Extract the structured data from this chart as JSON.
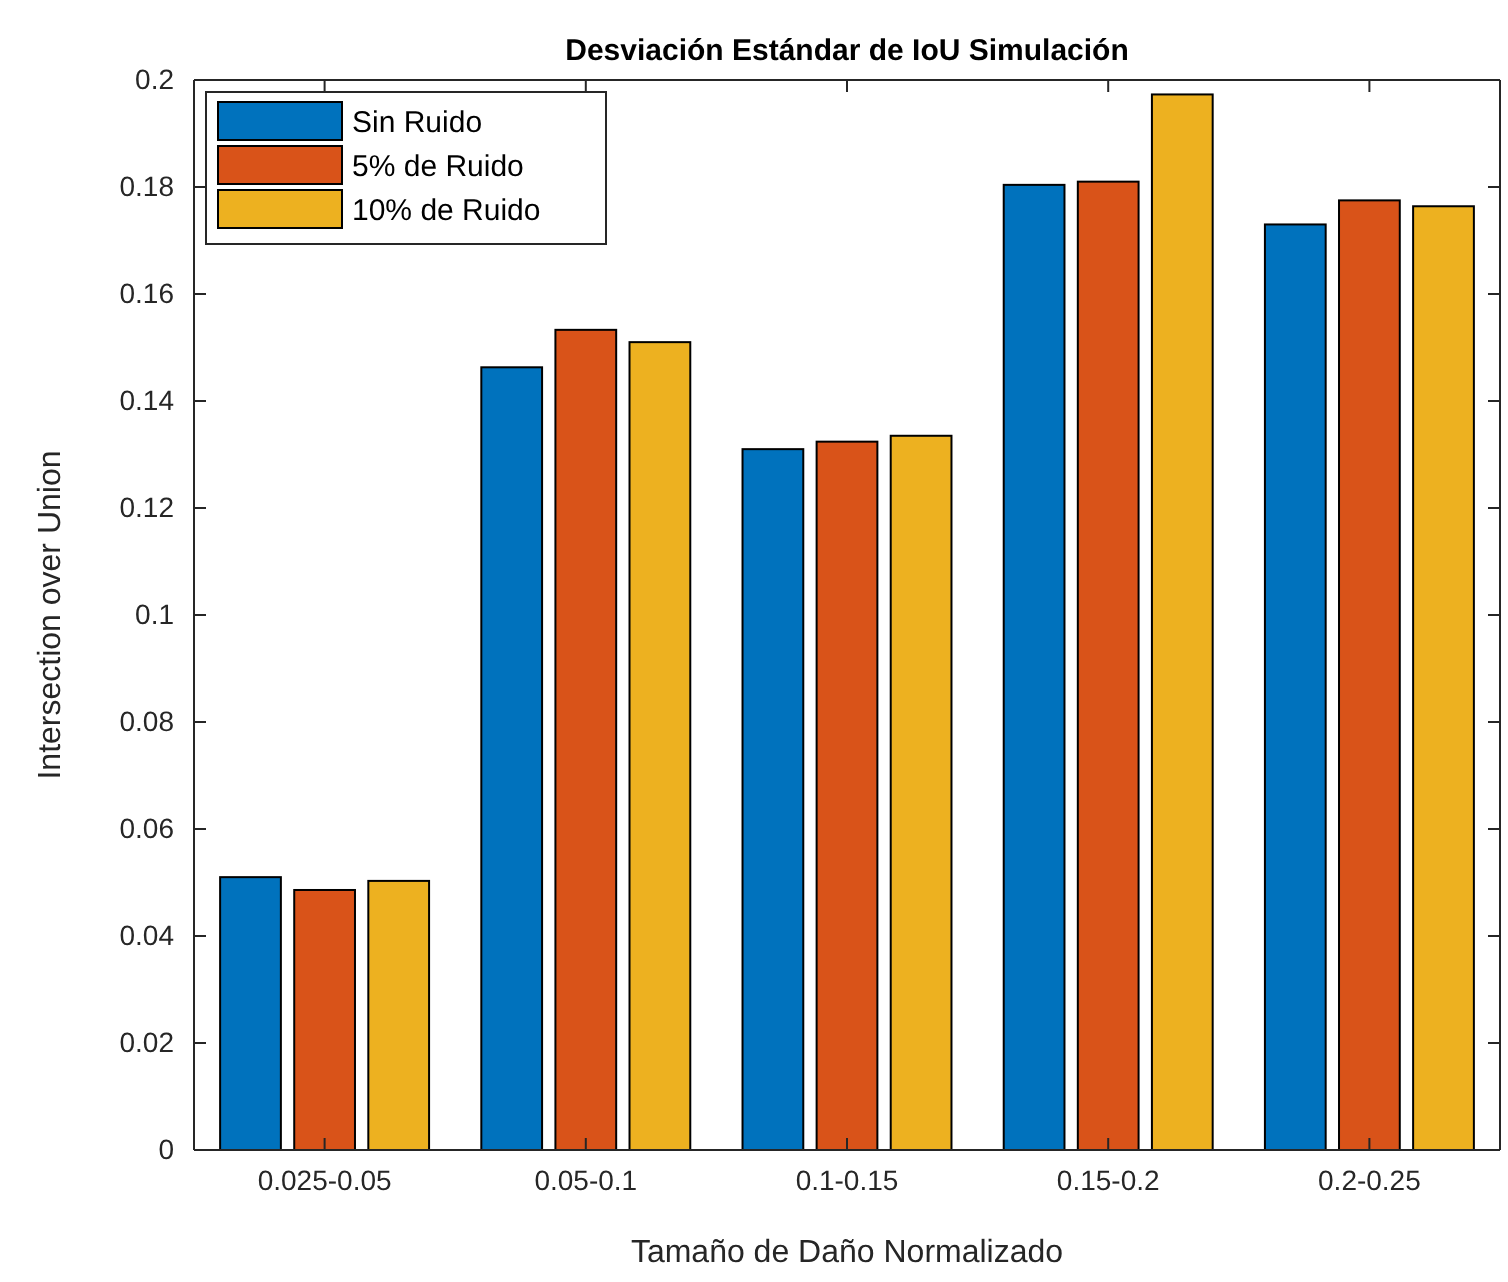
{
  "chart_data": {
    "type": "bar",
    "title": "Desviación Estándar de IoU Simulación",
    "xlabel": "Tamaño de Daño Normalizado",
    "ylabel": "Intersection over Union",
    "categories": [
      "0.025-0.05",
      "0.05-0.1",
      "0.1-0.15",
      "0.15-0.2",
      "0.2-0.25"
    ],
    "series": [
      {
        "name": "Sin Ruido",
        "color": "#0072bd",
        "values": [
          0.051,
          0.1463,
          0.131,
          0.1804,
          0.173
        ]
      },
      {
        "name": "5% de Ruido",
        "color": "#d95319",
        "values": [
          0.0486,
          0.1533,
          0.1324,
          0.181,
          0.1775
        ]
      },
      {
        "name": "10% de Ruido",
        "color": "#edb120",
        "values": [
          0.0503,
          0.151,
          0.1335,
          0.1973,
          0.1764
        ]
      }
    ],
    "ylim": [
      0,
      0.2
    ],
    "yticks": [
      0,
      0.02,
      0.04,
      0.06,
      0.08,
      0.1,
      0.12,
      0.14,
      0.16,
      0.18,
      0.2
    ],
    "legend": "top left",
    "grid": false
  }
}
